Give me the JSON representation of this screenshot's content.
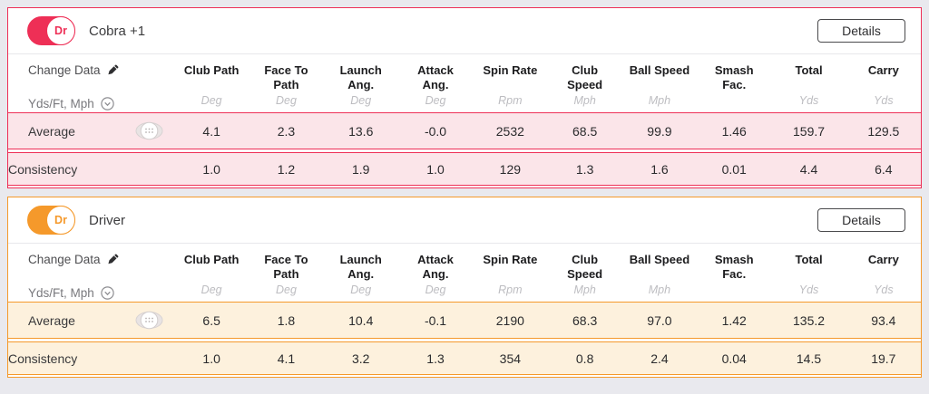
{
  "page": {
    "background": "#e9e9ee"
  },
  "shared": {
    "details_label": "Details",
    "change_data_label": "Change Data",
    "units_label": "Yds/Ft, Mph",
    "average_label": "Average",
    "consistency_label": "Consistency"
  },
  "columns": [
    {
      "label": "Club Path",
      "unit": "Deg"
    },
    {
      "label": "Face To Path",
      "unit": "Deg"
    },
    {
      "label": "Launch Ang.",
      "unit": "Deg"
    },
    {
      "label": "Attack Ang.",
      "unit": "Deg"
    },
    {
      "label": "Spin Rate",
      "unit": "Rpm"
    },
    {
      "label": "Club Speed",
      "unit": "Mph"
    },
    {
      "label": "Ball Speed",
      "unit": "Mph"
    },
    {
      "label": "Smash Fac.",
      "unit": ""
    },
    {
      "label": "Total",
      "unit": "Yds"
    },
    {
      "label": "Carry",
      "unit": "Yds"
    }
  ],
  "panels": [
    {
      "club_badge": "Dr",
      "club_name": "Cobra +1",
      "accent": "#ee2f56",
      "band_bg": "#fbe5e9",
      "average": [
        "4.1",
        "2.3",
        "13.6",
        "-0.0",
        "2532",
        "68.5",
        "99.9",
        "1.46",
        "159.7",
        "129.5"
      ],
      "consistency": [
        "1.0",
        "1.2",
        "1.9",
        "1.0",
        "129",
        "1.3",
        "1.6",
        "0.01",
        "4.4",
        "6.4"
      ]
    },
    {
      "club_badge": "Dr",
      "club_name": "Driver",
      "accent": "#f5992b",
      "band_bg": "#fdf1dd",
      "average": [
        "6.5",
        "1.8",
        "10.4",
        "-0.1",
        "2190",
        "68.3",
        "97.0",
        "1.42",
        "135.2",
        "93.4"
      ],
      "consistency": [
        "1.0",
        "4.1",
        "3.2",
        "1.3",
        "354",
        "0.8",
        "2.4",
        "0.04",
        "14.5",
        "19.7"
      ]
    }
  ]
}
